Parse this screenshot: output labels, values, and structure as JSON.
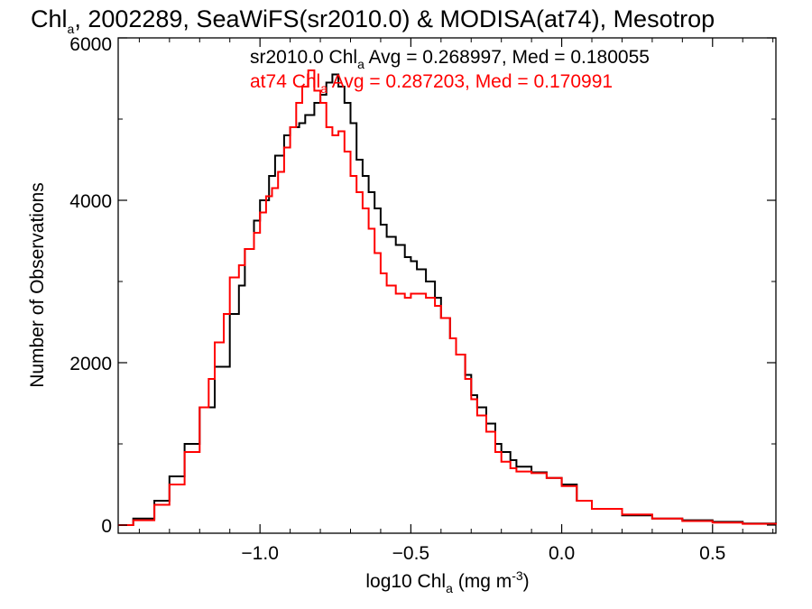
{
  "chart_data": {
    "type": "line",
    "step": true,
    "title": {
      "part1": "Chl",
      "part1_sub": "a",
      "part2": ", 2002289, SeaWiFS(sr2010.0) & MODISA(at74), Mesotrop"
    },
    "xlabel": {
      "main": "log10 Chl",
      "sub": "a",
      "units_pre": " (mg m",
      "units_sup": "-3",
      "units_post": ")"
    },
    "ylabel": "Number of Observations",
    "xlim": [
      -1.47,
      0.71
    ],
    "ylim": [
      -100,
      6000
    ],
    "x_ticks": [
      {
        "value": -1.0,
        "label": "−1.0"
      },
      {
        "value": -0.5,
        "label": "−0.5"
      },
      {
        "value": 0.0,
        "label": "0.0"
      },
      {
        "value": 0.5,
        "label": "0.5"
      }
    ],
    "y_ticks": [
      {
        "value": 0,
        "label": "0"
      },
      {
        "value": 2000,
        "label": "2000"
      },
      {
        "value": 4000,
        "label": "4000"
      },
      {
        "value": 6000,
        "label": "6000"
      }
    ],
    "grid": false,
    "series": [
      {
        "name": "sr2010.0",
        "color": "#000000",
        "points": [
          [
            -1.47,
            0
          ],
          [
            -1.42,
            80
          ],
          [
            -1.35,
            300
          ],
          [
            -1.3,
            600
          ],
          [
            -1.25,
            1000
          ],
          [
            -1.2,
            1450
          ],
          [
            -1.15,
            1950
          ],
          [
            -1.1,
            2600
          ],
          [
            -1.07,
            2950
          ],
          [
            -1.05,
            3400
          ],
          [
            -1.02,
            3750
          ],
          [
            -1.0,
            4000
          ],
          [
            -0.97,
            4300
          ],
          [
            -0.95,
            4550
          ],
          [
            -0.92,
            4800
          ],
          [
            -0.9,
            4900
          ],
          [
            -0.87,
            4950
          ],
          [
            -0.85,
            5050
          ],
          [
            -0.82,
            5200
          ],
          [
            -0.8,
            5300
          ],
          [
            -0.78,
            5450
          ],
          [
            -0.76,
            5550
          ],
          [
            -0.74,
            5400
          ],
          [
            -0.72,
            5200
          ],
          [
            -0.7,
            4950
          ],
          [
            -0.68,
            4500
          ],
          [
            -0.66,
            4300
          ],
          [
            -0.64,
            4100
          ],
          [
            -0.62,
            3900
          ],
          [
            -0.6,
            3700
          ],
          [
            -0.58,
            3550
          ],
          [
            -0.55,
            3450
          ],
          [
            -0.52,
            3300
          ],
          [
            -0.5,
            3250
          ],
          [
            -0.48,
            3150
          ],
          [
            -0.45,
            3000
          ],
          [
            -0.42,
            2800
          ],
          [
            -0.4,
            2550
          ],
          [
            -0.37,
            2300
          ],
          [
            -0.35,
            2100
          ],
          [
            -0.32,
            1850
          ],
          [
            -0.3,
            1600
          ],
          [
            -0.28,
            1450
          ],
          [
            -0.25,
            1250
          ],
          [
            -0.22,
            1000
          ],
          [
            -0.2,
            900
          ],
          [
            -0.17,
            800
          ],
          [
            -0.15,
            720
          ],
          [
            -0.1,
            650
          ],
          [
            -0.05,
            580
          ],
          [
            0.0,
            500
          ],
          [
            0.05,
            300
          ],
          [
            0.1,
            200
          ],
          [
            0.2,
            120
          ],
          [
            0.3,
            80
          ],
          [
            0.4,
            60
          ],
          [
            0.5,
            40
          ],
          [
            0.6,
            20
          ],
          [
            0.71,
            10
          ]
        ]
      },
      {
        "name": "at74",
        "color": "#ff0000",
        "points": [
          [
            -1.47,
            0
          ],
          [
            -1.42,
            60
          ],
          [
            -1.35,
            250
          ],
          [
            -1.3,
            500
          ],
          [
            -1.25,
            900
          ],
          [
            -1.2,
            1450
          ],
          [
            -1.17,
            1800
          ],
          [
            -1.15,
            2250
          ],
          [
            -1.12,
            2600
          ],
          [
            -1.1,
            3050
          ],
          [
            -1.07,
            3200
          ],
          [
            -1.05,
            3400
          ],
          [
            -1.02,
            3600
          ],
          [
            -1.0,
            3850
          ],
          [
            -0.98,
            4050
          ],
          [
            -0.96,
            4150
          ],
          [
            -0.94,
            4350
          ],
          [
            -0.92,
            4650
          ],
          [
            -0.9,
            4900
          ],
          [
            -0.88,
            5200
          ],
          [
            -0.86,
            5400
          ],
          [
            -0.84,
            5600
          ],
          [
            -0.82,
            5350
          ],
          [
            -0.8,
            5200
          ],
          [
            -0.78,
            4900
          ],
          [
            -0.76,
            4800
          ],
          [
            -0.74,
            4850
          ],
          [
            -0.72,
            4600
          ],
          [
            -0.7,
            4300
          ],
          [
            -0.68,
            4100
          ],
          [
            -0.66,
            3900
          ],
          [
            -0.64,
            3650
          ],
          [
            -0.62,
            3350
          ],
          [
            -0.6,
            3100
          ],
          [
            -0.58,
            2950
          ],
          [
            -0.55,
            2850
          ],
          [
            -0.52,
            2800
          ],
          [
            -0.5,
            2850
          ],
          [
            -0.48,
            2850
          ],
          [
            -0.45,
            2800
          ],
          [
            -0.42,
            2700
          ],
          [
            -0.4,
            2550
          ],
          [
            -0.37,
            2300
          ],
          [
            -0.35,
            2100
          ],
          [
            -0.32,
            1800
          ],
          [
            -0.3,
            1550
          ],
          [
            -0.28,
            1350
          ],
          [
            -0.25,
            1150
          ],
          [
            -0.22,
            900
          ],
          [
            -0.2,
            780
          ],
          [
            -0.17,
            700
          ],
          [
            -0.15,
            660
          ],
          [
            -0.1,
            640
          ],
          [
            -0.05,
            580
          ],
          [
            0.0,
            480
          ],
          [
            0.05,
            300
          ],
          [
            0.1,
            200
          ],
          [
            0.2,
            130
          ],
          [
            0.3,
            80
          ],
          [
            0.4,
            50
          ],
          [
            0.5,
            30
          ],
          [
            0.6,
            15
          ],
          [
            0.71,
            5
          ]
        ]
      }
    ],
    "annotations": [
      {
        "color": "#000000",
        "pre": "sr2010.0 Chl",
        "sub": "a",
        "post": " Avg = 0.268997, Med = 0.180055"
      },
      {
        "color": "#ff0000",
        "pre": "at74 Chl",
        "sub": "a",
        "post": " Avg = 0.287203, Med = 0.170991"
      }
    ]
  }
}
